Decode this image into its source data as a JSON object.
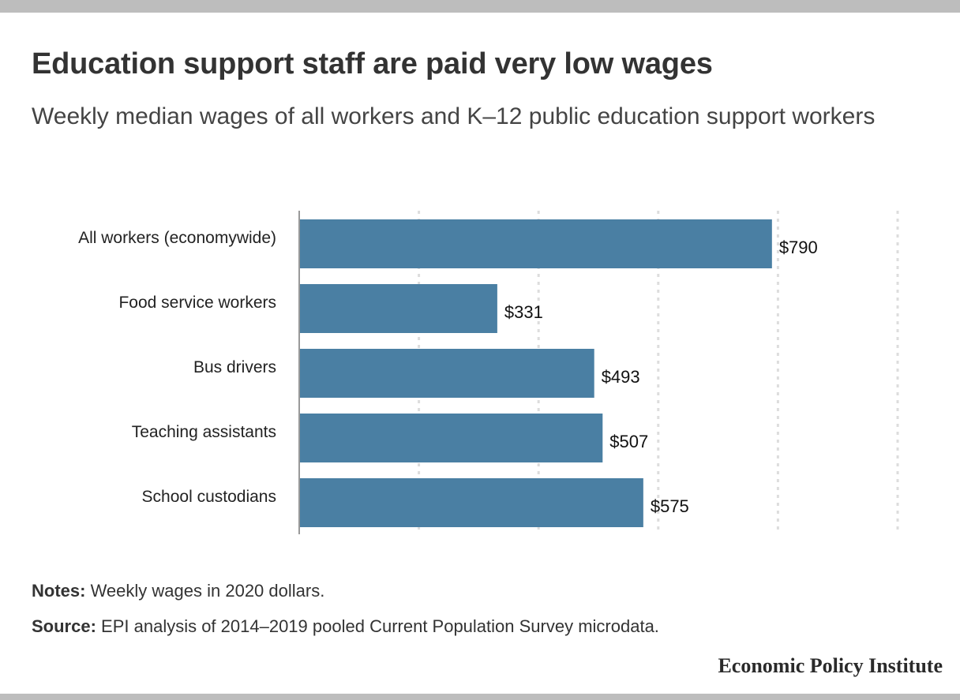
{
  "title": "Education support staff are paid very low wages",
  "subtitle": "Weekly median wages of all workers and K–12 public education support workers",
  "notes": {
    "label": "Notes:",
    "text": " Weekly wages in 2020 dollars."
  },
  "source": {
    "label": "Source:",
    "text": " EPI analysis of 2014–2019 pooled Current Population Survey microdata."
  },
  "brand": "Economic Policy Institute",
  "colors": {
    "bar": "#4a7fa3",
    "grid": "#dddddd",
    "axis": "#999999",
    "band": "#bdbdbd"
  },
  "chart_data": {
    "type": "bar",
    "orientation": "horizontal",
    "categories": [
      "All workers (economywide)",
      "Food service workers",
      "Bus drivers",
      "Teaching assistants",
      "School custodians"
    ],
    "values": [
      790,
      331,
      493,
      507,
      575
    ],
    "value_labels": [
      "$790",
      "$331",
      "$493",
      "$507",
      "$575"
    ],
    "xlim": [
      0,
      1000
    ],
    "grid": true,
    "x_tick_labels_shown": false
  }
}
